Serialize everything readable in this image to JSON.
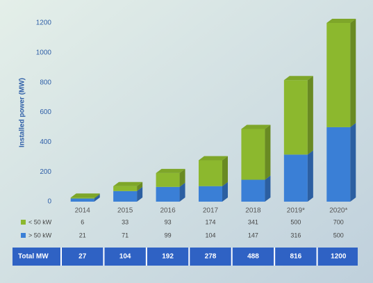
{
  "chart_data": {
    "type": "stacked-bar-3d",
    "y_label": "Installed power (MW)",
    "categories": [
      "2014",
      "2015",
      "2016",
      "2017",
      "2018",
      "2019*",
      "2020*"
    ],
    "series": [
      {
        "name": "< 50 kW",
        "color": "#8cb82e",
        "values": [
          6,
          33,
          93,
          174,
          341,
          500,
          700
        ]
      },
      {
        "name": "> 50 kW",
        "color": "#3a7fd6",
        "values": [
          21,
          71,
          99,
          104,
          147,
          316,
          500
        ]
      }
    ],
    "ylim": [
      0,
      1200
    ],
    "yticks": [
      0,
      200,
      400,
      600,
      800,
      1000,
      1200
    ],
    "total_label": "Total MW",
    "totals": [
      27,
      104,
      192,
      278,
      488,
      816,
      1200
    ]
  }
}
